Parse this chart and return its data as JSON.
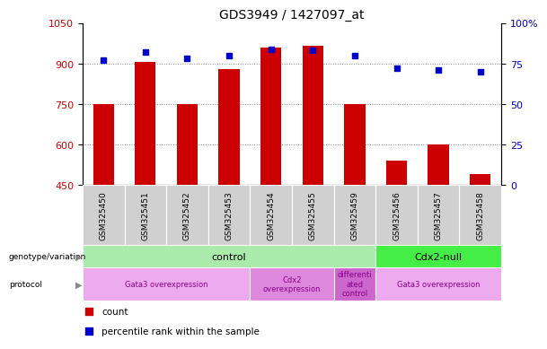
{
  "title": "GDS3949 / 1427097_at",
  "samples": [
    "GSM325450",
    "GSM325451",
    "GSM325452",
    "GSM325453",
    "GSM325454",
    "GSM325455",
    "GSM325459",
    "GSM325456",
    "GSM325457",
    "GSM325458"
  ],
  "counts": [
    750,
    905,
    750,
    880,
    960,
    965,
    750,
    540,
    600,
    490
  ],
  "percentiles": [
    77,
    82,
    78,
    80,
    84,
    83,
    80,
    72,
    71,
    70
  ],
  "ylim_left": [
    450,
    1050
  ],
  "ylim_right": [
    0,
    100
  ],
  "yticks_left": [
    450,
    600,
    750,
    900,
    1050
  ],
  "yticks_right": [
    0,
    25,
    50,
    75,
    100
  ],
  "bar_color": "#cc0000",
  "dot_color": "#0000cc",
  "genotype_groups": [
    {
      "label": "control",
      "start": 0,
      "end": 7,
      "color": "#aaeaaa"
    },
    {
      "label": "Cdx2-null",
      "start": 7,
      "end": 10,
      "color": "#44ee44"
    }
  ],
  "protocol_groups": [
    {
      "label": "Gata3 overexpression",
      "start": 0,
      "end": 4,
      "color": "#eeaaee"
    },
    {
      "label": "Cdx2\noverexpression",
      "start": 4,
      "end": 6,
      "color": "#dd88dd"
    },
    {
      "label": "differenti\nated\ncontrol",
      "start": 6,
      "end": 7,
      "color": "#cc66cc"
    },
    {
      "label": "Gata3 overexpression",
      "start": 7,
      "end": 10,
      "color": "#eeaaee"
    }
  ],
  "bar_width": 0.5,
  "left_label_color": "#cc0000",
  "right_label_color": "#0000cc",
  "grid_color": "#888888",
  "xlabel_area_color": "#cccccc",
  "cell_edge_color": "#ffffff",
  "geno_control_color": "#aaeaaa",
  "geno_cdx2_color": "#44ee44"
}
